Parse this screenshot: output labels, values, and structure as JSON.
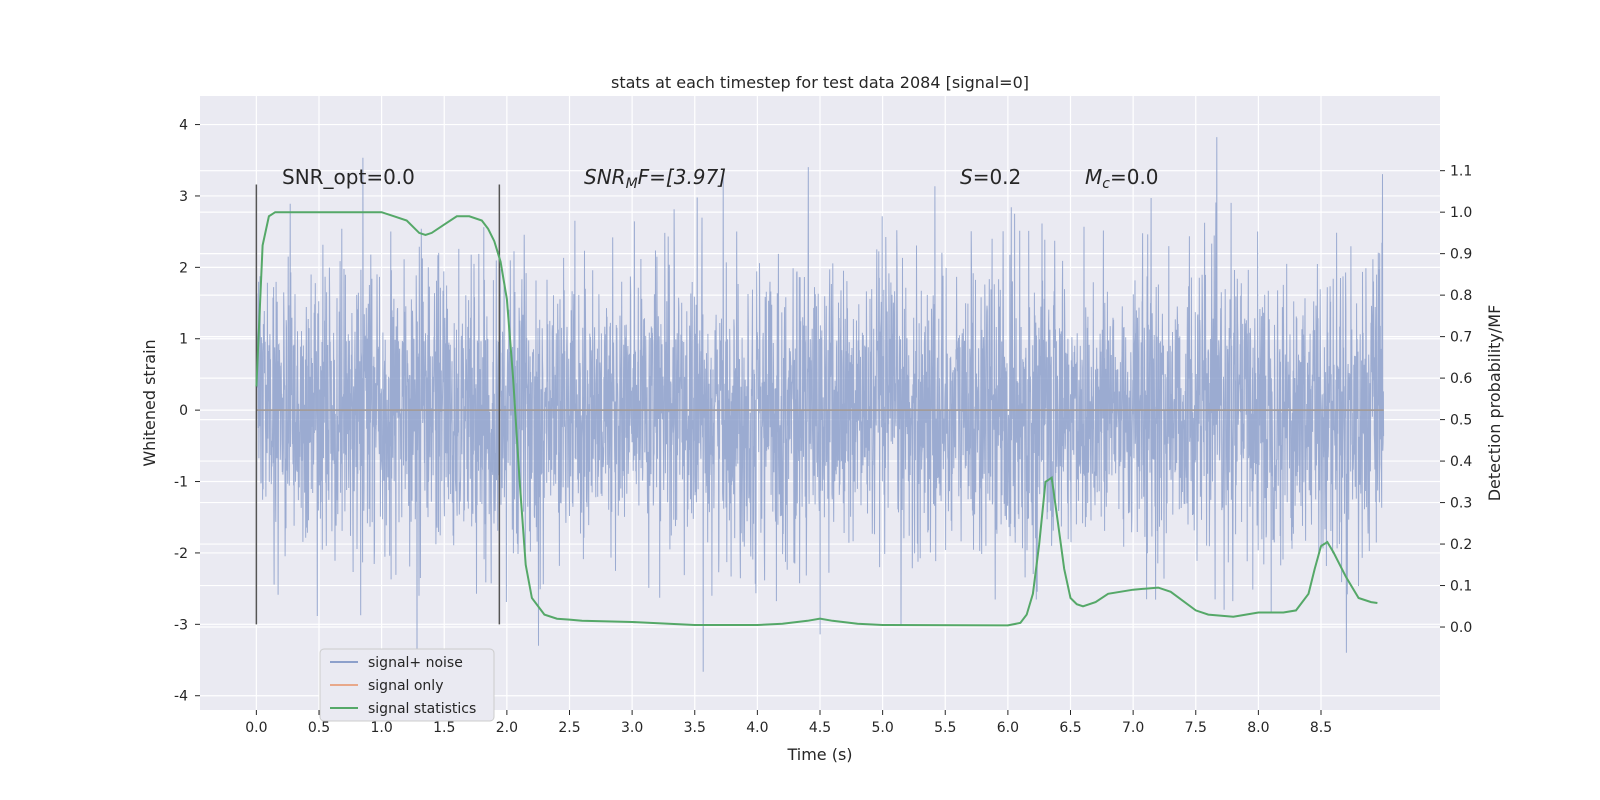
{
  "chart_data": {
    "type": "line",
    "title": "stats at each timestep for test data 2084 [signal=0]",
    "xlabel": "Time (s)",
    "ylabel": "Whitened strain",
    "ylabel_right": "Detection probability/MF",
    "xlim": [
      -0.45,
      9.45
    ],
    "ylim": [
      -4.2,
      4.4
    ],
    "ylim_right": [
      -0.2,
      1.28
    ],
    "x_ticks": [
      "0.0",
      "0.5",
      "1.0",
      "1.5",
      "2.0",
      "2.5",
      "3.0",
      "3.5",
      "4.0",
      "4.5",
      "5.0",
      "5.5",
      "6.0",
      "6.5",
      "7.0",
      "7.5",
      "8.0",
      "8.5"
    ],
    "y_ticks": [
      "4",
      "3",
      "2",
      "1",
      "0",
      "-1",
      "-2",
      "-3",
      "-4"
    ],
    "y_right_ticks": [
      "1.1",
      "1.0",
      "0.9",
      "0.8",
      "0.7",
      "0.6",
      "0.5",
      "0.4",
      "0.3",
      "0.2",
      "0.1",
      "0.0"
    ],
    "grid": true,
    "legend_position": "lower-left",
    "annotations": {
      "snr_opt": "SNR_opt=0.0",
      "snr_mf_prefix": "SNR",
      "snr_mf_sub": "M",
      "snr_mf_suffix": "F=[3.97]",
      "s_prefix": "S",
      "s_value": "=0.2",
      "mc_prefix": "M",
      "mc_sub": "c",
      "mc_value": "=0.0"
    },
    "window_markers": [
      0.0,
      1.94
    ],
    "series": [
      {
        "name": "signal+ noise",
        "color": "#8da0cb",
        "summary": {
          "x_range": [
            0.0,
            9.0
          ],
          "approx_min": -3.85,
          "approx_max": 4.02,
          "typical_band": [
            -1.3,
            1.3
          ]
        }
      },
      {
        "name": "signal only",
        "color": "#e8a88a",
        "x": [
          0.0,
          9.0
        ],
        "y": [
          0.0,
          0.0
        ]
      },
      {
        "name": "signal statistics",
        "color": "#55a868",
        "axis": "right",
        "x": [
          0.0,
          0.05,
          0.1,
          0.15,
          0.2,
          0.3,
          0.5,
          0.8,
          1.0,
          1.1,
          1.2,
          1.3,
          1.35,
          1.4,
          1.5,
          1.6,
          1.7,
          1.8,
          1.85,
          1.9,
          1.95,
          2.0,
          2.05,
          2.1,
          2.15,
          2.2,
          2.3,
          2.4,
          2.5,
          2.6,
          3.0,
          3.5,
          4.0,
          4.2,
          4.4,
          4.5,
          4.6,
          4.8,
          5.0,
          6.0,
          6.1,
          6.15,
          6.2,
          6.25,
          6.3,
          6.35,
          6.4,
          6.45,
          6.5,
          6.55,
          6.6,
          6.7,
          6.8,
          7.0,
          7.2,
          7.3,
          7.5,
          7.6,
          7.8,
          7.9,
          8.0,
          8.1,
          8.2,
          8.3,
          8.4,
          8.45,
          8.5,
          8.55,
          8.6,
          8.7,
          8.8,
          8.9,
          8.95
        ],
        "y": [
          0.58,
          0.92,
          0.99,
          1.0,
          1.0,
          1.0,
          1.0,
          1.0,
          1.0,
          0.99,
          0.98,
          0.95,
          0.945,
          0.95,
          0.97,
          0.99,
          0.99,
          0.98,
          0.96,
          0.93,
          0.88,
          0.79,
          0.6,
          0.36,
          0.15,
          0.07,
          0.03,
          0.02,
          0.018,
          0.015,
          0.012,
          0.005,
          0.005,
          0.008,
          0.015,
          0.02,
          0.015,
          0.008,
          0.005,
          0.004,
          0.01,
          0.03,
          0.08,
          0.2,
          0.35,
          0.36,
          0.25,
          0.14,
          0.07,
          0.055,
          0.05,
          0.06,
          0.08,
          0.09,
          0.095,
          0.085,
          0.04,
          0.03,
          0.025,
          0.03,
          0.035,
          0.035,
          0.035,
          0.04,
          0.08,
          0.14,
          0.195,
          0.205,
          0.18,
          0.12,
          0.07,
          0.06,
          0.058
        ]
      }
    ]
  }
}
